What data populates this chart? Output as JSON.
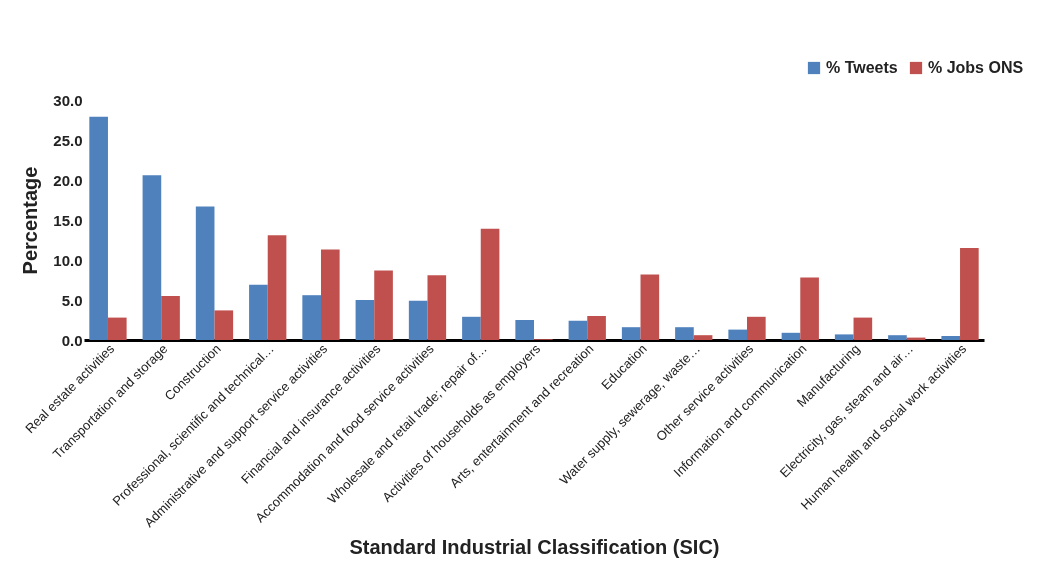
{
  "chart_data": {
    "type": "bar",
    "xlabel": "Standard Industrial Classification (SIC)",
    "ylabel": "Percentage",
    "categories": [
      "Real estate activities",
      "Transportation and storage",
      "Construction",
      "Professional, scientific and technical…",
      "Administrative and support service activities",
      "Financial and insurance activities",
      "Accommodation and food service activities",
      "Wholesale and retail trade; repair of…",
      "Activities of households as employers",
      "Arts, entertainment and recreation",
      "Education",
      "Water supply, sewerage, waste…",
      "Other service activities",
      "Information and communication",
      "Manufacturing",
      "Electricity, gas, steam and air…",
      "Human health and social work activities"
    ],
    "series": [
      {
        "name": "% Tweets",
        "color": "#4f81bd",
        "values": [
          27.9,
          20.6,
          16.7,
          6.9,
          5.6,
          5.0,
          4.9,
          2.9,
          2.5,
          2.4,
          1.6,
          1.6,
          1.3,
          0.9,
          0.7,
          0.6,
          0.5
        ]
      },
      {
        "name": "% Jobs ONS",
        "color": "#c0504d",
        "values": [
          2.8,
          5.5,
          3.7,
          13.1,
          11.3,
          8.7,
          8.1,
          13.9,
          0.1,
          3.0,
          8.2,
          0.6,
          2.9,
          7.8,
          2.8,
          0.3,
          11.5
        ]
      }
    ],
    "ylim": [
      0,
      30
    ],
    "yticks": [
      {
        "value": 0,
        "label": "0.0"
      },
      {
        "value": 5,
        "label": "5.0"
      },
      {
        "value": 10,
        "label": "10.0"
      },
      {
        "value": 15,
        "label": "15.0"
      },
      {
        "value": 20,
        "label": "20.0"
      },
      {
        "value": 25,
        "label": "25.0"
      },
      {
        "value": 30,
        "label": "30.0"
      }
    ],
    "grid": false,
    "legend": "top right"
  }
}
